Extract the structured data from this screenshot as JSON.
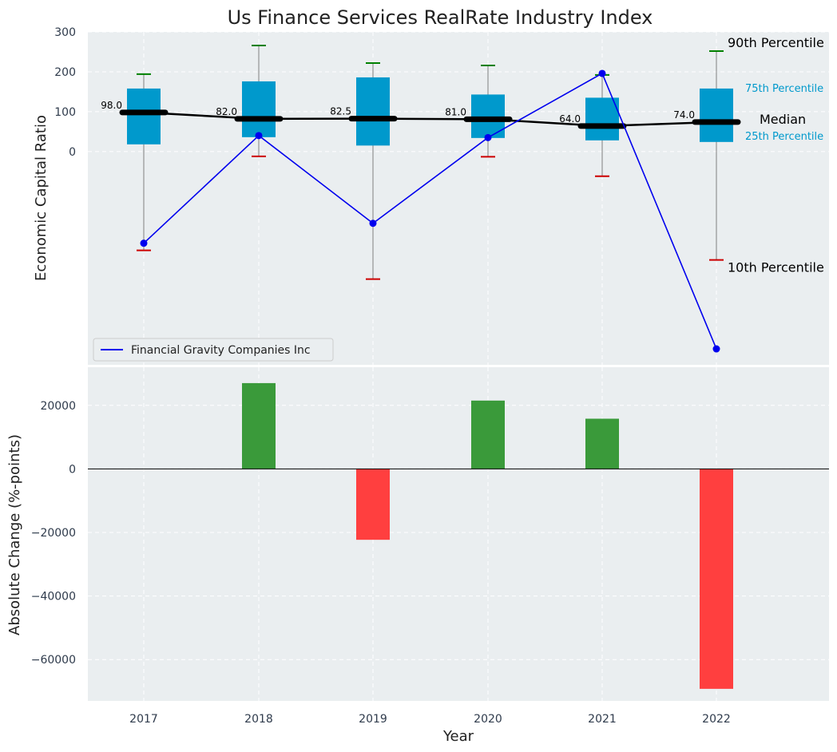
{
  "chart_data": [
    {
      "type": "box",
      "title": "Us Finance Services RealRate Industry Index",
      "ylabel": "Economic Capital Ratio",
      "xlabel": "",
      "ylim": [
        -535,
        300
      ],
      "yticks": [
        0,
        100,
        200,
        300
      ],
      "ytick_labels": [
        "0",
        "100",
        "200",
        "300"
      ],
      "categories": [
        "2017",
        "2018",
        "2019",
        "2020",
        "2021",
        "2022"
      ],
      "boxes": [
        {
          "p10": -248,
          "p25": 18,
          "median": 98.0,
          "p75": 158,
          "p90": 194
        },
        {
          "p10": -12,
          "p25": 36,
          "median": 82.0,
          "p75": 176,
          "p90": 266
        },
        {
          "p10": -320,
          "p25": 15,
          "median": 82.5,
          "p75": 186,
          "p90": 222
        },
        {
          "p10": -13,
          "p25": 34,
          "median": 81.0,
          "p75": 143,
          "p90": 216
        },
        {
          "p10": -62,
          "p25": 28,
          "median": 64.0,
          "p75": 135,
          "p90": 192
        },
        {
          "p10": -272,
          "p25": 24,
          "median": 74.0,
          "p75": 158,
          "p90": 252
        }
      ],
      "median_labels": [
        "98.0",
        "82.0",
        "82.5",
        "81.0",
        "64.0",
        "74.0"
      ],
      "series": [
        {
          "name": "Financial Gravity Companies Inc",
          "color": "#0000ee",
          "values": [
            -230,
            40,
            -180,
            35,
            196,
            -495
          ]
        }
      ],
      "annotations": {
        "p90": "90th Percentile",
        "p75": "75th Percentile",
        "median": "Median",
        "p25": "25th Percentile",
        "p10": "10th Percentile"
      },
      "legend": "lower-left"
    },
    {
      "type": "bar",
      "ylabel": "Absolute Change (%-points)",
      "xlabel": "Year",
      "categories": [
        "2017",
        "2018",
        "2019",
        "2020",
        "2021",
        "2022"
      ],
      "values": [
        0,
        27000,
        -22300,
        21500,
        15800,
        -69200
      ],
      "ylim": [
        -73000,
        32000
      ],
      "yticks": [
        -60000,
        -40000,
        -20000,
        0,
        20000
      ],
      "ytick_labels": [
        "−60000",
        "−40000",
        "−20000",
        "0",
        "20000"
      ],
      "positive_color": "#3a9a3a",
      "negative_color": "#ff3f3f"
    }
  ],
  "colors": {
    "background": "#eaeef0",
    "box_fill": "#0099cc",
    "median_line": "#000000",
    "whisker": "#808080",
    "cap_high": "#008000",
    "cap_low": "#cc0000"
  }
}
